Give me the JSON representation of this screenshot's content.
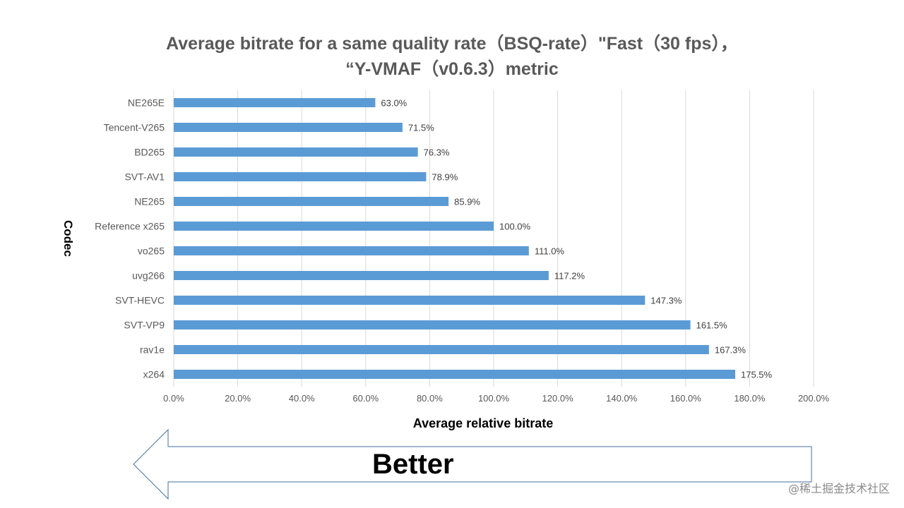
{
  "chart_data": {
    "type": "bar",
    "orientation": "horizontal",
    "title_line1": "Average bitrate for a same quality rate（BSQ-rate）\"Fast（30 fps），",
    "title_line2": "“Y-VMAF（v0.6.3）metric",
    "xlabel": "Average relative bitrate",
    "ylabel": "Codec",
    "xlim": [
      0,
      200
    ],
    "x_ticks": [
      "0.0%",
      "20.0%",
      "40.0%",
      "60.0%",
      "80.0%",
      "100.0%",
      "120.0%",
      "140.0%",
      "160.0%",
      "180.0%",
      "200.0%"
    ],
    "categories": [
      "NE265E",
      "Tencent-V265",
      "BD265",
      "SVT-AV1",
      "NE265",
      "Reference x265",
      "vo265",
      "uvg266",
      "SVT-HEVC",
      "SVT-VP9",
      "rav1e",
      "x264"
    ],
    "values": [
      63.0,
      71.5,
      76.3,
      78.9,
      85.9,
      100.0,
      111.0,
      117.2,
      147.3,
      161.5,
      167.3,
      175.5
    ],
    "value_labels": [
      "63.0%",
      "71.5%",
      "76.3%",
      "78.9%",
      "85.9%",
      "100.0%",
      "111.0%",
      "117.2%",
      "147.3%",
      "161.5%",
      "167.3%",
      "175.5%"
    ],
    "bar_color": "#5b9bd5",
    "grid": true
  },
  "annotation": {
    "arrow_text": "Better",
    "direction": "left"
  },
  "watermark": "@稀土掘金技术社区"
}
